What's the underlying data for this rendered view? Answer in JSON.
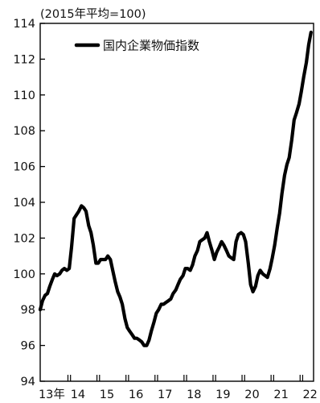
{
  "chart_data": {
    "type": "line",
    "unit_note": "(2015年平均=100)",
    "legend": {
      "label": "国内企業物価指数",
      "placement": "top-left"
    },
    "ylim": [
      94,
      114
    ],
    "y_ticks": [
      "94",
      "96",
      "98",
      "100",
      "102",
      "104",
      "106",
      "108",
      "110",
      "112",
      "114"
    ],
    "x_labels": [
      {
        "label": "13年",
        "year": 2013.4
      },
      {
        "label": "14",
        "year": 2014.3
      },
      {
        "label": "15",
        "year": 2015.3
      },
      {
        "label": "16",
        "year": 2016.3
      },
      {
        "label": "17",
        "year": 2017.3
      },
      {
        "label": "18",
        "year": 2018.3
      },
      {
        "label": "19",
        "year": 2019.3
      },
      {
        "label": "20",
        "year": 2020.3
      },
      {
        "label": "21",
        "year": 2021.3
      },
      {
        "label": "22",
        "year": 2022.3
      }
    ],
    "x_major_ticks": [
      2014,
      2015,
      2016,
      2017,
      2018,
      2019,
      2020,
      2021,
      2022
    ],
    "xlim": [
      2013.0,
      2022.42
    ],
    "grid": false,
    "series": [
      {
        "name": "国内企業物価指数",
        "color": "#000000",
        "points": [
          [
            2013.0,
            98.0
          ],
          [
            2013.08,
            98.5
          ],
          [
            2013.17,
            98.8
          ],
          [
            2013.25,
            98.9
          ],
          [
            2013.33,
            99.3
          ],
          [
            2013.42,
            99.7
          ],
          [
            2013.5,
            100.0
          ],
          [
            2013.58,
            99.9
          ],
          [
            2013.67,
            100.0
          ],
          [
            2013.75,
            100.2
          ],
          [
            2013.83,
            100.3
          ],
          [
            2013.92,
            100.2
          ],
          [
            2014.0,
            100.3
          ],
          [
            2014.08,
            101.5
          ],
          [
            2014.17,
            103.1
          ],
          [
            2014.25,
            103.3
          ],
          [
            2014.33,
            103.5
          ],
          [
            2014.42,
            103.8
          ],
          [
            2014.5,
            103.7
          ],
          [
            2014.58,
            103.5
          ],
          [
            2014.67,
            102.7
          ],
          [
            2014.75,
            102.3
          ],
          [
            2014.83,
            101.6
          ],
          [
            2014.92,
            100.6
          ],
          [
            2015.0,
            100.6
          ],
          [
            2015.08,
            100.8
          ],
          [
            2015.17,
            100.8
          ],
          [
            2015.25,
            100.8
          ],
          [
            2015.33,
            101.0
          ],
          [
            2015.42,
            100.8
          ],
          [
            2015.5,
            100.2
          ],
          [
            2015.58,
            99.6
          ],
          [
            2015.67,
            99.0
          ],
          [
            2015.75,
            98.7
          ],
          [
            2015.83,
            98.3
          ],
          [
            2015.92,
            97.5
          ],
          [
            2016.0,
            97.0
          ],
          [
            2016.08,
            96.8
          ],
          [
            2016.17,
            96.6
          ],
          [
            2016.25,
            96.4
          ],
          [
            2016.33,
            96.4
          ],
          [
            2016.42,
            96.3
          ],
          [
            2016.5,
            96.2
          ],
          [
            2016.58,
            96.0
          ],
          [
            2016.67,
            96.0
          ],
          [
            2016.75,
            96.3
          ],
          [
            2016.83,
            96.8
          ],
          [
            2016.92,
            97.3
          ],
          [
            2017.0,
            97.8
          ],
          [
            2017.08,
            98.0
          ],
          [
            2017.17,
            98.3
          ],
          [
            2017.25,
            98.3
          ],
          [
            2017.33,
            98.4
          ],
          [
            2017.42,
            98.5
          ],
          [
            2017.5,
            98.6
          ],
          [
            2017.58,
            98.9
          ],
          [
            2017.67,
            99.1
          ],
          [
            2017.75,
            99.4
          ],
          [
            2017.83,
            99.7
          ],
          [
            2017.92,
            99.9
          ],
          [
            2018.0,
            100.3
          ],
          [
            2018.08,
            100.3
          ],
          [
            2018.17,
            100.2
          ],
          [
            2018.25,
            100.5
          ],
          [
            2018.33,
            101.0
          ],
          [
            2018.42,
            101.3
          ],
          [
            2018.5,
            101.8
          ],
          [
            2018.58,
            101.9
          ],
          [
            2018.67,
            102.0
          ],
          [
            2018.75,
            102.3
          ],
          [
            2018.83,
            101.8
          ],
          [
            2018.92,
            101.3
          ],
          [
            2019.0,
            100.8
          ],
          [
            2019.08,
            101.2
          ],
          [
            2019.17,
            101.5
          ],
          [
            2019.25,
            101.8
          ],
          [
            2019.33,
            101.6
          ],
          [
            2019.42,
            101.3
          ],
          [
            2019.5,
            101.0
          ],
          [
            2019.58,
            100.9
          ],
          [
            2019.67,
            100.8
          ],
          [
            2019.75,
            101.8
          ],
          [
            2019.83,
            102.2
          ],
          [
            2019.92,
            102.3
          ],
          [
            2020.0,
            102.2
          ],
          [
            2020.08,
            101.8
          ],
          [
            2020.17,
            100.6
          ],
          [
            2020.25,
            99.4
          ],
          [
            2020.33,
            99.0
          ],
          [
            2020.42,
            99.3
          ],
          [
            2020.5,
            99.9
          ],
          [
            2020.58,
            100.2
          ],
          [
            2020.67,
            100.0
          ],
          [
            2020.75,
            99.9
          ],
          [
            2020.83,
            99.8
          ],
          [
            2020.92,
            100.3
          ],
          [
            2021.0,
            100.9
          ],
          [
            2021.08,
            101.6
          ],
          [
            2021.17,
            102.6
          ],
          [
            2021.25,
            103.4
          ],
          [
            2021.33,
            104.5
          ],
          [
            2021.42,
            105.5
          ],
          [
            2021.5,
            106.1
          ],
          [
            2021.58,
            106.5
          ],
          [
            2021.67,
            107.5
          ],
          [
            2021.75,
            108.6
          ],
          [
            2021.83,
            109.0
          ],
          [
            2021.92,
            109.5
          ],
          [
            2022.0,
            110.2
          ],
          [
            2022.08,
            111.0
          ],
          [
            2022.17,
            111.8
          ],
          [
            2022.25,
            112.8
          ],
          [
            2022.33,
            113.5
          ]
        ]
      }
    ]
  }
}
